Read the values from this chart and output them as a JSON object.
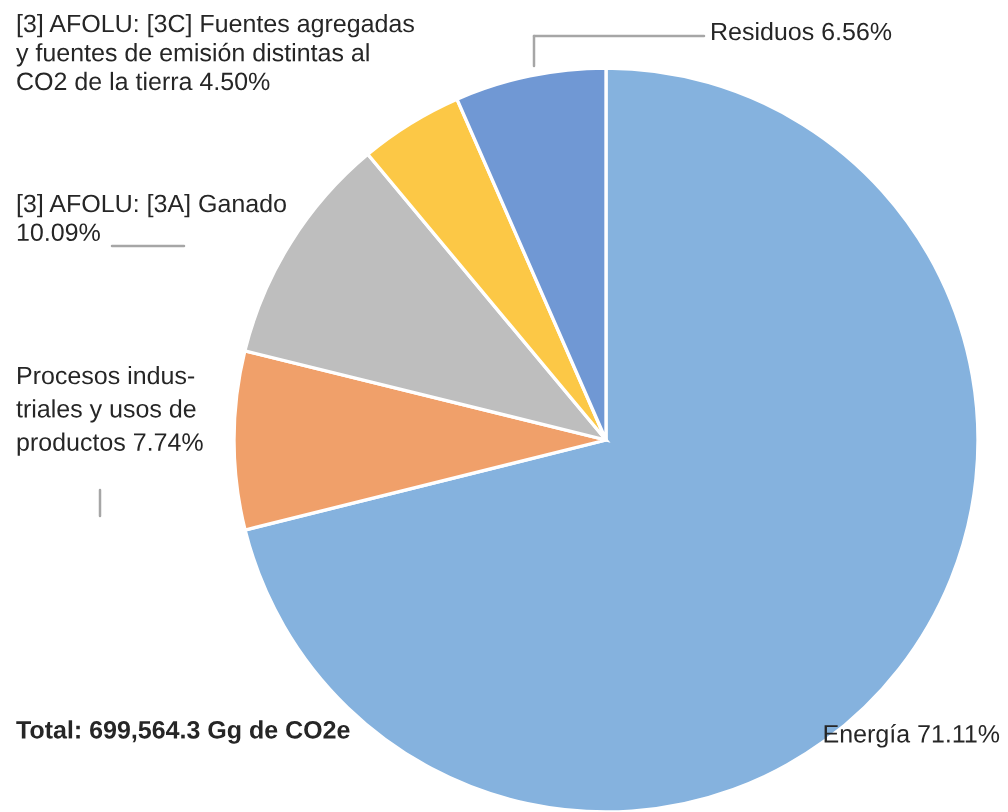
{
  "chart_data": {
    "type": "pie",
    "categories": [
      "Energía",
      "Procesos indus-\ntriales y usos de\nproductos",
      "[3] AFOLU: [3A] Ganado",
      "[3] AFOLU: [3C] Fuentes agregadas\ny fuentes de emisión distintas al\nCO2 de la tierra",
      "Residuos"
    ],
    "values": [
      71.11,
      7.74,
      10.09,
      4.5,
      6.56
    ],
    "value_labels": [
      "71.11%",
      "7.74%",
      "10.09%",
      "4.50%",
      "6.56%"
    ],
    "colors": [
      "#85b2de",
      "#f0a06a",
      "#bebebe",
      "#fcc846",
      "#7098d4"
    ],
    "annotations": [
      "Total: 699,564.3 Gg de CO2e"
    ]
  }
}
